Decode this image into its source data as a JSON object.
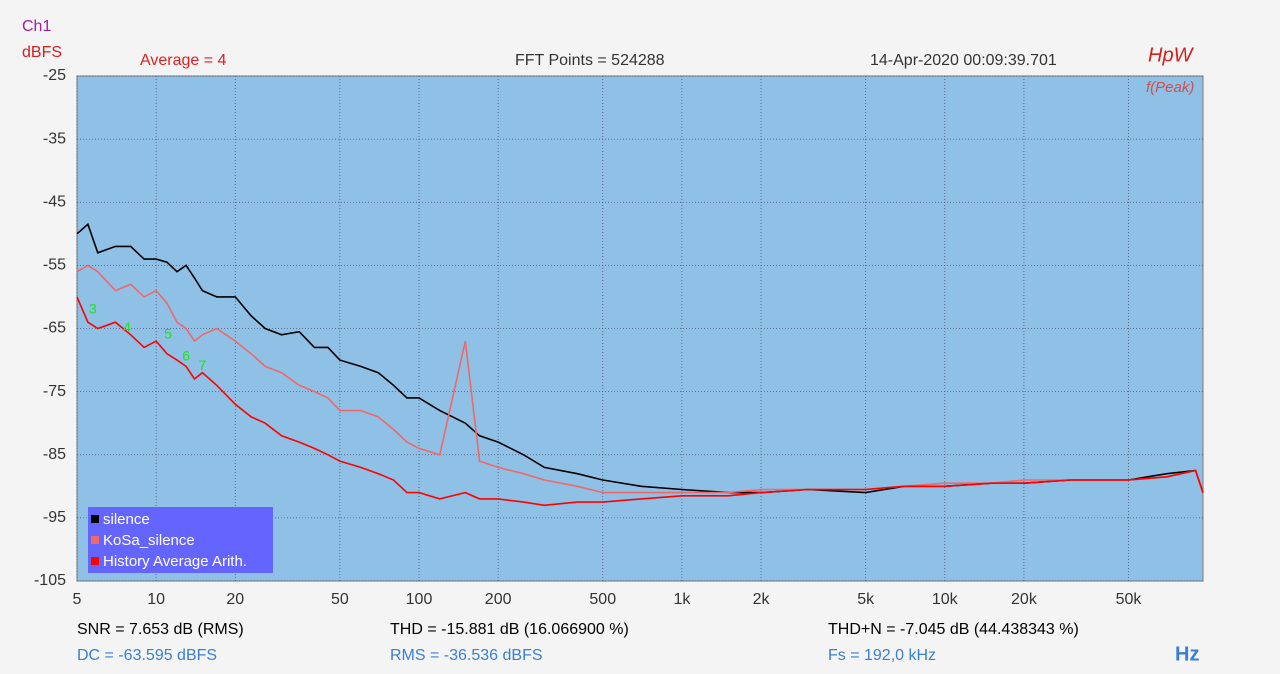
{
  "chart_data": {
    "type": "line",
    "channel": "Ch1",
    "ylabel": "dBFS",
    "header": [
      "Average = 4",
      "FFT Points = 524288",
      "14-Apr-2020 00:09:39.701"
    ],
    "logo": "HpW",
    "peak_mode": "f(Peak)",
    "xlabel": "Hz",
    "log_x": true,
    "grid": true,
    "legend": "bottom-left",
    "xlim": [
      5,
      96000
    ],
    "ylim": [
      -105,
      -25
    ],
    "xticks": [
      5,
      10,
      20,
      50,
      100,
      200,
      500,
      {
        "value": 1000,
        "label": "1k"
      },
      {
        "value": 2000,
        "label": "2k"
      },
      {
        "value": 5000,
        "label": "5k"
      },
      {
        "value": 10000,
        "label": "10k"
      },
      {
        "value": 20000,
        "label": "20k"
      },
      {
        "value": 50000,
        "label": "50k"
      }
    ],
    "yticks": [
      -25,
      -35,
      -45,
      -55,
      -65,
      -75,
      -85,
      -95,
      -105
    ],
    "x": [
      5,
      5.5,
      6,
      7,
      8,
      9,
      10,
      11,
      12,
      13,
      14,
      15,
      17,
      20,
      23,
      26,
      30,
      35,
      40,
      45,
      50,
      60,
      70,
      80,
      90,
      100,
      120,
      150,
      170,
      200,
      250,
      300,
      400,
      500,
      700,
      1000,
      1500,
      2000,
      3000,
      5000,
      7000,
      10000,
      15000,
      20000,
      30000,
      50000,
      70000,
      90000,
      96000
    ],
    "series": [
      {
        "name": "silence",
        "color": "#000000",
        "values": [
          -50,
          -48.5,
          -53,
          -52,
          -52,
          -54,
          -54,
          -54.5,
          -56,
          -55,
          -57,
          -59,
          -60,
          -60,
          -63,
          -65,
          -66,
          -65.5,
          -68,
          -68,
          -70,
          -71,
          -72,
          -74,
          -76,
          -76,
          -78,
          -80,
          -82,
          -83,
          -85,
          -87,
          -88,
          -89,
          -90,
          -90.5,
          -91,
          -91,
          -90.5,
          -91,
          -90,
          -90,
          -89.5,
          -89.5,
          -89,
          -89,
          -88,
          -87.5,
          -91
        ]
      },
      {
        "name": "KoSa_silence",
        "color": "#f06868",
        "values": [
          -56,
          -55,
          -56,
          -59,
          -58,
          -60,
          -59,
          -61,
          -64,
          -65,
          -67,
          -66,
          -65,
          -67,
          -69,
          -71,
          -72,
          -74,
          -75,
          -76,
          -78,
          -78,
          -79,
          -81,
          -83,
          -84,
          -85,
          -67,
          -86,
          -87,
          -88,
          -89,
          -90,
          -91,
          -91,
          -91,
          -91,
          -90.5,
          -90.5,
          -90.5,
          -90,
          -89.5,
          -89.5,
          -89,
          -89,
          -89,
          -88.5,
          -87.5,
          -91
        ]
      },
      {
        "name": "History Average Arith.",
        "color": "#ff0000",
        "values": [
          -60,
          -64,
          -65,
          -64,
          -66,
          -68,
          -67,
          -69,
          -70,
          -71,
          -73,
          -72,
          -74,
          -77,
          -79,
          -80,
          -82,
          -83,
          -84,
          -85,
          -86,
          -87,
          -88,
          -89,
          -91,
          -91,
          -92,
          -91,
          -92,
          -92,
          -92.5,
          -93,
          -92.5,
          -92.5,
          -92,
          -91.5,
          -91.5,
          -91,
          -90.5,
          -90.5,
          -90,
          -90,
          -89.5,
          -89.5,
          -89,
          -89,
          -88.5,
          -87.5,
          -91
        ]
      }
    ],
    "annotations": [
      {
        "text": "3",
        "x": 5.75,
        "y": -62
      },
      {
        "text": "4",
        "x": 7.75,
        "y": -65
      },
      {
        "text": "5",
        "x": 11.1,
        "y": -66
      },
      {
        "text": "6",
        "x": 13,
        "y": -69.5
      },
      {
        "text": "7",
        "x": 15,
        "y": -71
      }
    ],
    "stats": [
      "SNR = 7.653 dB (RMS)",
      "THD = -15.881 dB (16.066900 %)",
      "THD+N = -7.045 dB (44.438343 %)",
      "DC = -63.595 dBFS",
      "RMS = -36.536 dBFS",
      "Fs = 192,0 kHz"
    ]
  }
}
